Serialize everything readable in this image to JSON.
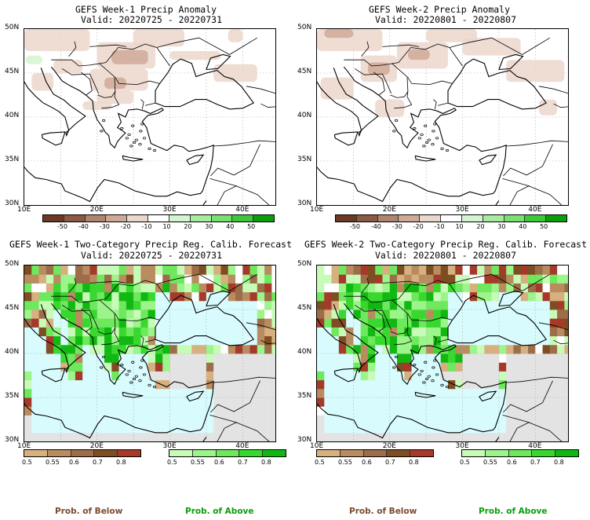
{
  "panels": [
    {
      "id": "p1",
      "title": "GEFS Week-1 Precip Anomaly",
      "valid": "Valid: 20220725 - 20220731",
      "kind": "anomaly"
    },
    {
      "id": "p2",
      "title": "GEFS Week-2 Precip Anomaly",
      "valid": "Valid: 20220801 - 20220807",
      "kind": "anomaly"
    },
    {
      "id": "p3",
      "title": "GEFS Week-1 Two-Category Precip Reg. Calib. Forecast",
      "valid": "Valid: 20220725 - 20220731",
      "kind": "probability"
    },
    {
      "id": "p4",
      "title": "GEFS Week-2 Two-Category Precip Reg. Calib. Forecast",
      "valid": "Valid: 20220801 - 20220807",
      "kind": "probability"
    }
  ],
  "axes": {
    "lat_labels": [
      "50N",
      "45N",
      "40N",
      "35N",
      "30N"
    ],
    "lon_labels": [
      "10E",
      "20E",
      "30E",
      "40E"
    ]
  },
  "anomaly_colorbar": {
    "labels": [
      "-50",
      "-40",
      "-30",
      "-20",
      "-10",
      "10",
      "20",
      "30",
      "40",
      "50"
    ],
    "colors": [
      "#6b3a26",
      "#8c5a44",
      "#b08470",
      "#cfa996",
      "#ecd7cc",
      "#ffffff",
      "#d3f5cf",
      "#a6eba0",
      "#79df70",
      "#3fc73a",
      "#0a9e0a"
    ]
  },
  "below_colorbar": {
    "labels": [
      "0.5",
      "0.55",
      "0.6",
      "0.7",
      "0.8"
    ],
    "colors": [
      "#d6b07f",
      "#b88c5f",
      "#9c6d48",
      "#7f4d22",
      "#a53a2a"
    ]
  },
  "above_colorbar": {
    "labels": [
      "0.5",
      "0.55",
      "0.6",
      "0.7",
      "0.8"
    ],
    "colors": [
      "#c9fbb8",
      "#9cf58a",
      "#6ee85c",
      "#38d82e",
      "#12b812"
    ]
  },
  "footers": {
    "below": "Prob. of Below",
    "above": "Prob. of Above",
    "below_color": "#7a4a2e",
    "above_color": "#0a9e0a"
  },
  "map_colors": {
    "sea_prob": "#d8fbfd",
    "land_gray": "#e3e3e3",
    "grid": "#aaaaaa"
  }
}
